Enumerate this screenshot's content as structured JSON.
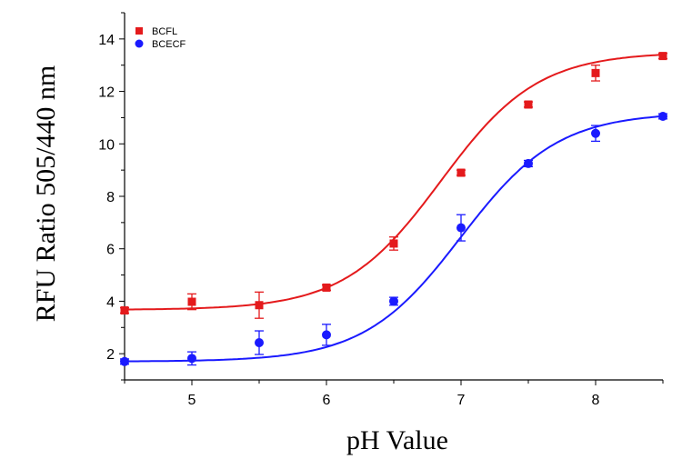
{
  "chart_data": {
    "type": "scatter",
    "xlabel": "pH Value",
    "ylabel": "RFU Ratio 505/440 nm",
    "xlim": [
      4.5,
      8.5
    ],
    "ylim": [
      1,
      15
    ],
    "xticks": [
      5,
      6,
      7,
      8
    ],
    "yticks": [
      2,
      4,
      6,
      8,
      10,
      12,
      14
    ],
    "legend_position": "top-left",
    "grid": false,
    "fit_curves": true,
    "series": [
      {
        "name": "BCFL",
        "color": "#e41a1c",
        "marker": "square",
        "x": [
          4.5,
          5,
          5.5,
          6,
          6.5,
          7,
          7.5,
          8,
          8.5
        ],
        "y": [
          3.65,
          3.98,
          3.85,
          4.52,
          6.2,
          8.9,
          11.5,
          12.7,
          13.35
        ],
        "error": [
          0.1,
          0.3,
          0.5,
          0.1,
          0.25,
          0.1,
          0.1,
          0.3,
          0.1
        ],
        "fit": {
          "bottom": 3.67,
          "top": 13.5,
          "x0": 6.85,
          "dx": 0.36
        }
      },
      {
        "name": "BCECF",
        "color": "#1a1aff",
        "marker": "circle",
        "x": [
          4.5,
          5,
          5.5,
          6,
          6.5,
          7,
          7.5,
          8,
          8.5
        ],
        "y": [
          1.7,
          1.82,
          2.42,
          2.72,
          4.0,
          6.8,
          9.25,
          10.4,
          11.05
        ],
        "error": [
          0.1,
          0.25,
          0.45,
          0.4,
          0.15,
          0.5,
          0.12,
          0.3,
          0.1
        ],
        "fit": {
          "bottom": 1.7,
          "top": 11.2,
          "x0": 7.0,
          "dx": 0.36
        }
      }
    ]
  }
}
